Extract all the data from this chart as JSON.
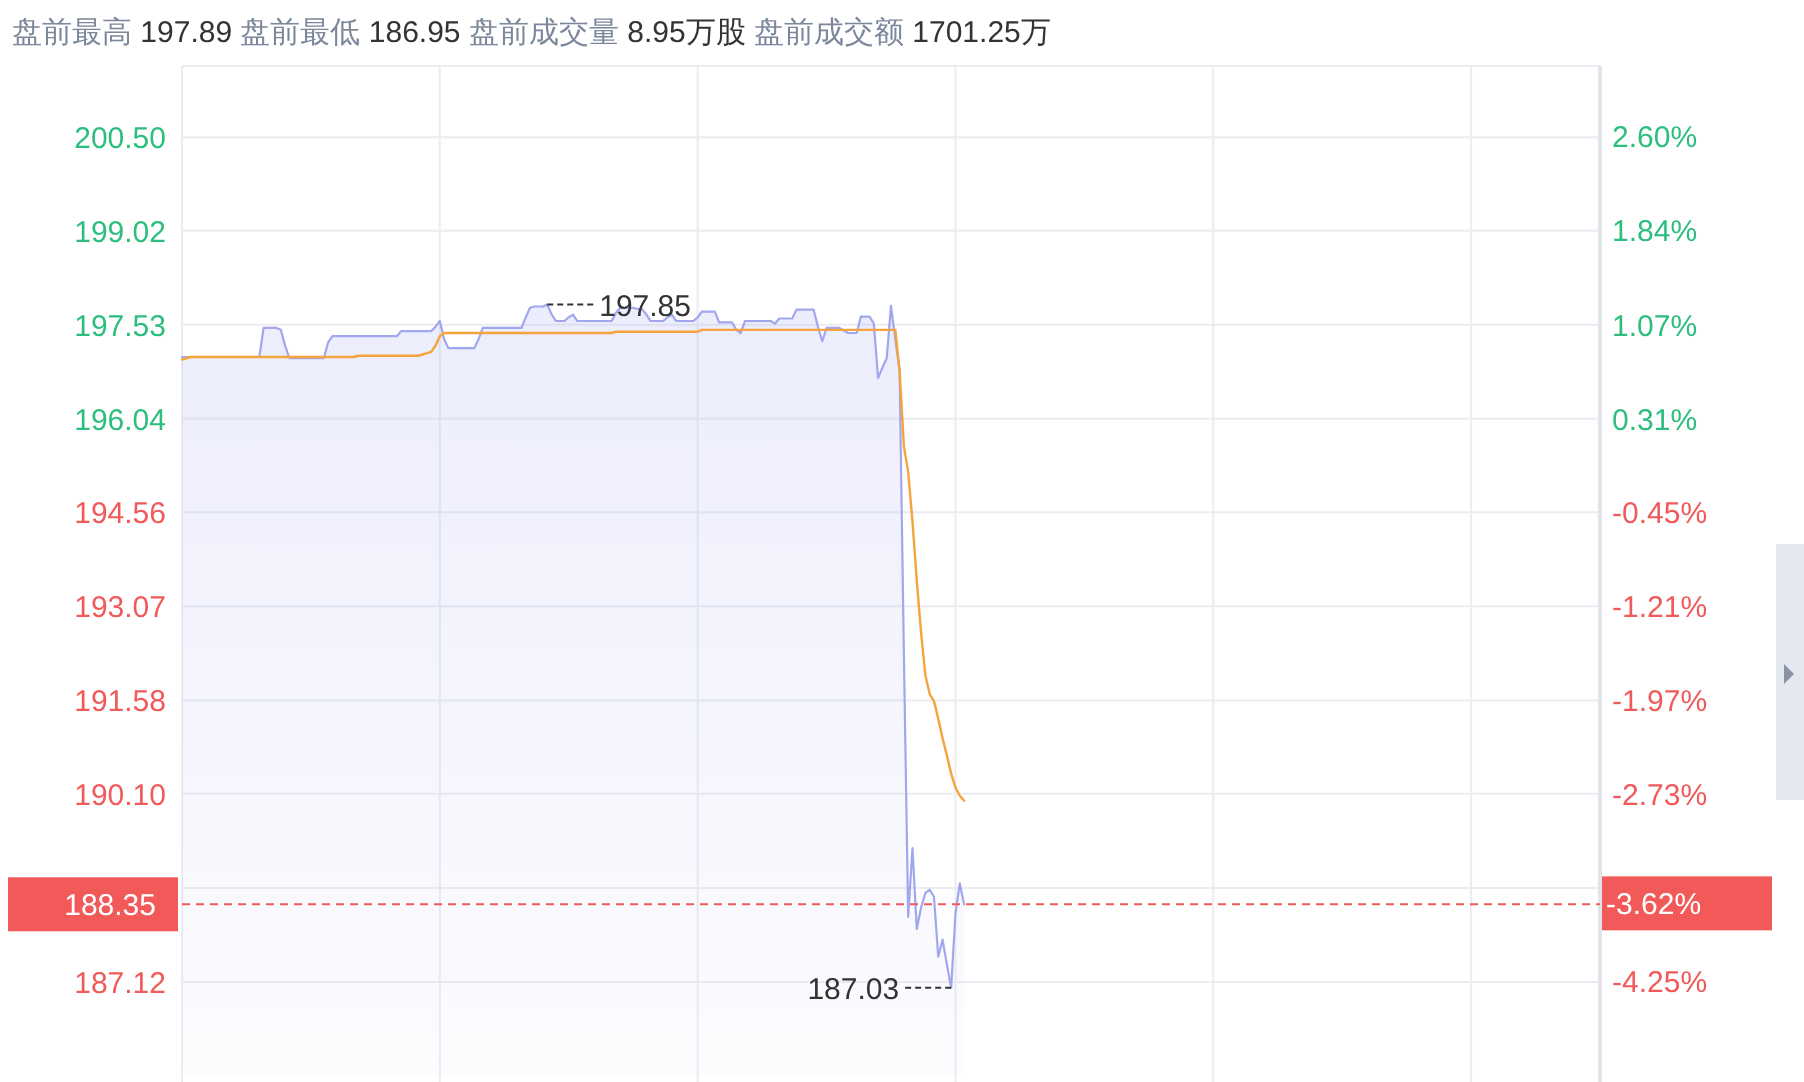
{
  "chart_data": {
    "type": "line",
    "title": "盘前最高 197.89 盘前最低 186.95 盘前成交量 8.95万股 盘前成交额 1701.25万",
    "categories": [
      null,
      null,
      null,
      null,
      null,
      null,
      null,
      null,
      null,
      null,
      null,
      null,
      null,
      null,
      null,
      null,
      null,
      null,
      null,
      null,
      null,
      null,
      null,
      null,
      null,
      null,
      null,
      null,
      null,
      null,
      null,
      null,
      null,
      null,
      null,
      null,
      null,
      null,
      null,
      null,
      null,
      null,
      null,
      null,
      null,
      null,
      null,
      null,
      null,
      null,
      null,
      null,
      null,
      null,
      null,
      null,
      null,
      null,
      null,
      null,
      null,
      null,
      null,
      null,
      null,
      null,
      null,
      null,
      null,
      null,
      null,
      null,
      null,
      null,
      null,
      null,
      null,
      null,
      null,
      null,
      null,
      null,
      null,
      null,
      null,
      null,
      null,
      null,
      null,
      null,
      null,
      null,
      null,
      null,
      null,
      null,
      null,
      null,
      null,
      null,
      null,
      null,
      null,
      null,
      null,
      null,
      null,
      null,
      null,
      null,
      null,
      null,
      null,
      null,
      null,
      null,
      null,
      null,
      null,
      null,
      null,
      null,
      null,
      null,
      null,
      null,
      null,
      null,
      null,
      null,
      null,
      null,
      null,
      null,
      null,
      null,
      null,
      null,
      null,
      null,
      null,
      null,
      null,
      null,
      null,
      null,
      null,
      null,
      null,
      null,
      null,
      null,
      null,
      null,
      null,
      null,
      null,
      null,
      null,
      null,
      null,
      null,
      null,
      null,
      null,
      null,
      null,
      null,
      null,
      null,
      null,
      null,
      null,
      null,
      null,
      null,
      null,
      null,
      null,
      null,
      null,
      null,
      null,
      null,
      null,
      null,
      null,
      null,
      null,
      null,
      null,
      null,
      null,
      null,
      null,
      null,
      null,
      null,
      null,
      null,
      null,
      null,
      null,
      null,
      null,
      null,
      null,
      null,
      null,
      null,
      null,
      null,
      null,
      null,
      null,
      null,
      null,
      null,
      null,
      null,
      null,
      null,
      null,
      null,
      null,
      null,
      null,
      null,
      null,
      null,
      null,
      null,
      null,
      null,
      null,
      null,
      null,
      null,
      null,
      null,
      null,
      null,
      null,
      null,
      null,
      null,
      null,
      null,
      null,
      null,
      null,
      null,
      null,
      null,
      null,
      null,
      null,
      null,
      null,
      null,
      null,
      null,
      null,
      null,
      null,
      null,
      null,
      null,
      null,
      null,
      null,
      null,
      null,
      null,
      null,
      null,
      null,
      null,
      null,
      null,
      null,
      null,
      null,
      null,
      null,
      null,
      null,
      null,
      null,
      null,
      null,
      null,
      null,
      null,
      null,
      null,
      null,
      null,
      null,
      null,
      null,
      null,
      null,
      null,
      null,
      null,
      null,
      null,
      null,
      null,
      null,
      null,
      null,
      null,
      null,
      null,
      null,
      null,
      null,
      null,
      null,
      null,
      null,
      null,
      null,
      null,
      null,
      null,
      null,
      null,
      null
    ],
    "series": [
      {
        "type": "area",
        "color": "#a1a7ee",
        "values": [
          197.02,
          197.02,
          197.02,
          197.02,
          197.02,
          197.02,
          197.02,
          197.02,
          197.02,
          197.02,
          197.02,
          197.02,
          197.02,
          197.02,
          197.02,
          197.02,
          197.02,
          197.02,
          197.02,
          197.48,
          197.48,
          197.48,
          197.48,
          197.45,
          197.2,
          197.0,
          197.0,
          197.0,
          197.0,
          197.0,
          197.0,
          197.0,
          197.0,
          197.0,
          197.25,
          197.35,
          197.35,
          197.35,
          197.35,
          197.35,
          197.35,
          197.35,
          197.35,
          197.35,
          197.35,
          197.35,
          197.35,
          197.35,
          197.35,
          197.35,
          197.35,
          197.43,
          197.43,
          197.43,
          197.43,
          197.43,
          197.43,
          197.43,
          197.43,
          197.5,
          197.59,
          197.3,
          197.16,
          197.16,
          197.16,
          197.16,
          197.16,
          197.16,
          197.16,
          197.3,
          197.48,
          197.48,
          197.48,
          197.48,
          197.48,
          197.48,
          197.48,
          197.48,
          197.48,
          197.48,
          197.65,
          197.8,
          197.82,
          197.82,
          197.82,
          197.85,
          197.7,
          197.59,
          197.59,
          197.59,
          197.65,
          197.69,
          197.59,
          197.59,
          197.59,
          197.59,
          197.59,
          197.59,
          197.59,
          197.59,
          197.59,
          197.72,
          197.8,
          197.8,
          197.8,
          197.8,
          197.78,
          197.78,
          197.7,
          197.59,
          197.59,
          197.59,
          197.59,
          197.65,
          197.69,
          197.59,
          197.59,
          197.59,
          197.59,
          197.59,
          197.65,
          197.74,
          197.74,
          197.74,
          197.74,
          197.57,
          197.57,
          197.57,
          197.57,
          197.45,
          197.4,
          197.59,
          197.59,
          197.59,
          197.59,
          197.59,
          197.59,
          197.59,
          197.55,
          197.63,
          197.63,
          197.63,
          197.63,
          197.77,
          197.77,
          197.77,
          197.77,
          197.77,
          197.5,
          197.27,
          197.48,
          197.48,
          197.48,
          197.48,
          197.44,
          197.4,
          197.4,
          197.4,
          197.66,
          197.66,
          197.66,
          197.55,
          196.69,
          196.85,
          197.0,
          197.83,
          197.3,
          196.8,
          192.3,
          188.15,
          189.24,
          187.96,
          188.3,
          188.53,
          188.58,
          188.47,
          187.52,
          187.79,
          187.4,
          187.03,
          188.2,
          188.68,
          188.35,
          null,
          null,
          null,
          null,
          null,
          null,
          null,
          null,
          null,
          null,
          null,
          null,
          null,
          null,
          null,
          null,
          null,
          null,
          null,
          null,
          null,
          null,
          null,
          null,
          null,
          null,
          null,
          null,
          null,
          null,
          null,
          null,
          null,
          null,
          null,
          null,
          null,
          null,
          null,
          null,
          null,
          null,
          null,
          null,
          null,
          null,
          null,
          null,
          null,
          null,
          null,
          null,
          null,
          null,
          null,
          null,
          null,
          null,
          null,
          null,
          null,
          null,
          null,
          null,
          null,
          null,
          null,
          null,
          null,
          null,
          null,
          null,
          null,
          null,
          null,
          null,
          null,
          null,
          null,
          null,
          null,
          null,
          null,
          null,
          null,
          null,
          null,
          null,
          null,
          null,
          null,
          null,
          null,
          null,
          null,
          null,
          null,
          null,
          null,
          null,
          null,
          null,
          null,
          null,
          null,
          null,
          null,
          null,
          null,
          null,
          null,
          null,
          null,
          null,
          null,
          null,
          null,
          null,
          null,
          null,
          null,
          null,
          null,
          null,
          null,
          null,
          null,
          null,
          null,
          null,
          null,
          null,
          null,
          null,
          null,
          null,
          null,
          null,
          null,
          null,
          null,
          null,
          null,
          null,
          null,
          null,
          null,
          null
        ],
        "value_labels": [
          null,
          null,
          null,
          null,
          null,
          null,
          null,
          null,
          null,
          null,
          null,
          null,
          null,
          null,
          null,
          null,
          null,
          null,
          null,
          null,
          null,
          null,
          null,
          null,
          null,
          null,
          null,
          null,
          null,
          null,
          null,
          null,
          null,
          null,
          null,
          null,
          null,
          null,
          null,
          null,
          null,
          null,
          null,
          null,
          null,
          null,
          null,
          null,
          null,
          null,
          null,
          null,
          null,
          null,
          null,
          null,
          null,
          null,
          null,
          null,
          null,
          null,
          null,
          null,
          null,
          null,
          null,
          null,
          null,
          null,
          null,
          null,
          null,
          null,
          null,
          null,
          null,
          null,
          null,
          null,
          null,
          null,
          null,
          null,
          null,
          "197.85",
          null,
          null,
          null,
          null,
          null,
          null,
          null,
          null,
          null,
          null,
          null,
          null,
          null,
          null,
          null,
          null,
          null,
          null,
          null,
          null,
          null,
          null,
          null,
          null,
          null,
          null,
          null,
          null,
          null,
          null,
          null,
          null,
          null,
          null,
          null,
          null,
          null,
          null,
          null,
          null,
          null,
          null,
          null,
          null,
          null,
          null,
          null,
          null,
          null,
          null,
          null,
          null,
          null,
          null,
          null,
          null,
          null,
          null,
          null,
          null,
          null,
          null,
          null,
          null,
          null,
          null,
          null,
          null,
          null,
          null,
          null,
          null,
          null,
          null,
          null,
          null,
          null,
          null,
          null,
          null,
          null,
          null,
          null,
          null,
          null,
          null,
          null,
          null,
          null,
          null,
          null,
          null,
          null,
          "187.03",
          null,
          null,
          null,
          null,
          null,
          null,
          null,
          null,
          null,
          null,
          null,
          null,
          null,
          null,
          null,
          null,
          null,
          null,
          null,
          null,
          null,
          null,
          null,
          null,
          null,
          null,
          null,
          null,
          null,
          null,
          null,
          null,
          null,
          null,
          null,
          null,
          null,
          null,
          null,
          null,
          null,
          null,
          null,
          null,
          null,
          null,
          null,
          null,
          null,
          null,
          null,
          null,
          null,
          null,
          null,
          null,
          null,
          null,
          null,
          null,
          null,
          null,
          null,
          null,
          null,
          null,
          null,
          null,
          null,
          null,
          null,
          null,
          null,
          null,
          null,
          null,
          null,
          null,
          null,
          null,
          null,
          null,
          null,
          null,
          null,
          null,
          null,
          null,
          null,
          null,
          null,
          null,
          null,
          null,
          null,
          null,
          null,
          null,
          null,
          null,
          null,
          null,
          null,
          null,
          null,
          null,
          null,
          null,
          null,
          null,
          null,
          null,
          null,
          null,
          null,
          null,
          null,
          null,
          null,
          null,
          null,
          null,
          null,
          null,
          null,
          null,
          null,
          null,
          null,
          null,
          null,
          null,
          null,
          null,
          null,
          null,
          null,
          null,
          null,
          null,
          null,
          null,
          null,
          null,
          null,
          null,
          null,
          null,
          null,
          null,
          null
        ]
      },
      {
        "color": "#f5a33d",
        "values": [
          196.98,
          197.0,
          197.02,
          197.02,
          197.02,
          197.02,
          197.02,
          197.02,
          197.02,
          197.02,
          197.02,
          197.02,
          197.02,
          197.02,
          197.02,
          197.02,
          197.02,
          197.02,
          197.02,
          197.02,
          197.02,
          197.02,
          197.02,
          197.02,
          197.02,
          197.02,
          197.02,
          197.02,
          197.02,
          197.02,
          197.02,
          197.02,
          197.02,
          197.02,
          197.02,
          197.02,
          197.02,
          197.02,
          197.02,
          197.02,
          197.02,
          197.04,
          197.04,
          197.04,
          197.04,
          197.04,
          197.04,
          197.04,
          197.04,
          197.04,
          197.04,
          197.04,
          197.04,
          197.04,
          197.04,
          197.04,
          197.06,
          197.08,
          197.1,
          197.2,
          197.35,
          197.4,
          197.4,
          197.4,
          197.4,
          197.4,
          197.4,
          197.4,
          197.4,
          197.4,
          197.4,
          197.4,
          197.4,
          197.4,
          197.4,
          197.4,
          197.4,
          197.4,
          197.4,
          197.4,
          197.4,
          197.4,
          197.4,
          197.4,
          197.4,
          197.4,
          197.4,
          197.4,
          197.4,
          197.4,
          197.4,
          197.4,
          197.4,
          197.4,
          197.4,
          197.4,
          197.4,
          197.4,
          197.4,
          197.4,
          197.4,
          197.42,
          197.42,
          197.42,
          197.42,
          197.42,
          197.42,
          197.42,
          197.42,
          197.42,
          197.42,
          197.42,
          197.42,
          197.42,
          197.42,
          197.42,
          197.42,
          197.42,
          197.42,
          197.42,
          197.42,
          197.45,
          197.45,
          197.45,
          197.45,
          197.45,
          197.45,
          197.45,
          197.45,
          197.45,
          197.45,
          197.45,
          197.45,
          197.45,
          197.45,
          197.45,
          197.45,
          197.45,
          197.45,
          197.45,
          197.45,
          197.45,
          197.45,
          197.45,
          197.45,
          197.45,
          197.45,
          197.45,
          197.45,
          197.45,
          197.45,
          197.45,
          197.45,
          197.45,
          197.45,
          197.45,
          197.45,
          197.45,
          197.45,
          197.45,
          197.45,
          197.45,
          197.45,
          197.45,
          197.45,
          197.45,
          197.45,
          196.8,
          195.6,
          195.2,
          194.41,
          193.48,
          192.65,
          191.98,
          191.68,
          191.57,
          191.29,
          190.98,
          190.71,
          190.42,
          190.2,
          190.07,
          189.99,
          null,
          null,
          null,
          null,
          null,
          null,
          null,
          null,
          null,
          null,
          null,
          null,
          null,
          null,
          null,
          null,
          null,
          null,
          null,
          null,
          null,
          null,
          null,
          null,
          null,
          null,
          null,
          null,
          null,
          null,
          null,
          null,
          null,
          null,
          null,
          null,
          null,
          null,
          null,
          null,
          null,
          null,
          null,
          null,
          null,
          null,
          null,
          null,
          null,
          null,
          null,
          null,
          null,
          null,
          null,
          null,
          null,
          null,
          null,
          null,
          null,
          null,
          null,
          null,
          null,
          null,
          null,
          null,
          null,
          null,
          null,
          null,
          null,
          null,
          null,
          null,
          null,
          null,
          null,
          null,
          null,
          null,
          null,
          null,
          null,
          null,
          null,
          null,
          null,
          null,
          null,
          null,
          null,
          null,
          null,
          null,
          null,
          null,
          null,
          null,
          null,
          null,
          null,
          null,
          null,
          null,
          null,
          null,
          null,
          null,
          null,
          null,
          null,
          null,
          null,
          null,
          null,
          null,
          null,
          null,
          null,
          null,
          null,
          null,
          null,
          null,
          null,
          null,
          null,
          null,
          null,
          null,
          null,
          null,
          null,
          null,
          null,
          null,
          null,
          null,
          null,
          null,
          null,
          null,
          null,
          null,
          null,
          null
        ]
      }
    ],
    "ylim": [
      185.63,
      201.63
    ],
    "yticks": [
      187.12,
      {
        "value": 188.61,
        "label": null
      },
      {
        "value": 190.1,
        "label": "190.10"
      },
      191.58,
      193.07,
      194.56,
      196.04,
      197.53,
      199.02,
      {
        "value": 200.5,
        "label": "200.50"
      }
    ],
    "y2lim": [
      -5.02,
      3.17
    ],
    "y2ticks": [
      {
        "value": -4.25,
        "label": "-4.25%"
      },
      {
        "value": -3.62,
        "label": "-3.62%"
      },
      {
        "value": -2.73,
        "label": "-2.73%"
      },
      {
        "value": -1.97,
        "label": "-1.97%"
      },
      {
        "value": -1.21,
        "label": "-1.21%"
      },
      {
        "value": -0.45,
        "label": "-0.45%"
      },
      {
        "value": 0.31,
        "label": "0.31%"
      },
      {
        "value": 1.07,
        "label": "1.07%"
      },
      {
        "value": 1.84,
        "label": "1.84%"
      },
      {
        "value": 2.6,
        "label": "2.60%"
      }
    ],
    "ref_lines": [
      {
        "axis": "y",
        "value": 188.35,
        "label": "188.35",
        "color": "#f25a5a",
        "line_style": "dashed"
      }
    ],
    "grid": true
  }
}
